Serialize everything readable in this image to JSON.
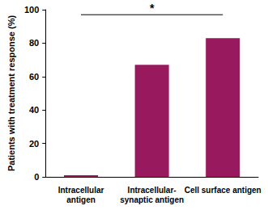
{
  "chart_data": {
    "type": "bar",
    "y_label": "Patients with treatment response (%)",
    "categories": [
      "Intracellular antigen",
      "Intracellular-synaptic antigen",
      "Cell surface antigen"
    ],
    "values": [
      1,
      67,
      83
    ],
    "color": "#99195e",
    "ylim": [
      0,
      100
    ],
    "yticks": [
      0,
      20,
      40,
      60,
      80,
      100
    ],
    "grid": false,
    "annotation": "*"
  }
}
